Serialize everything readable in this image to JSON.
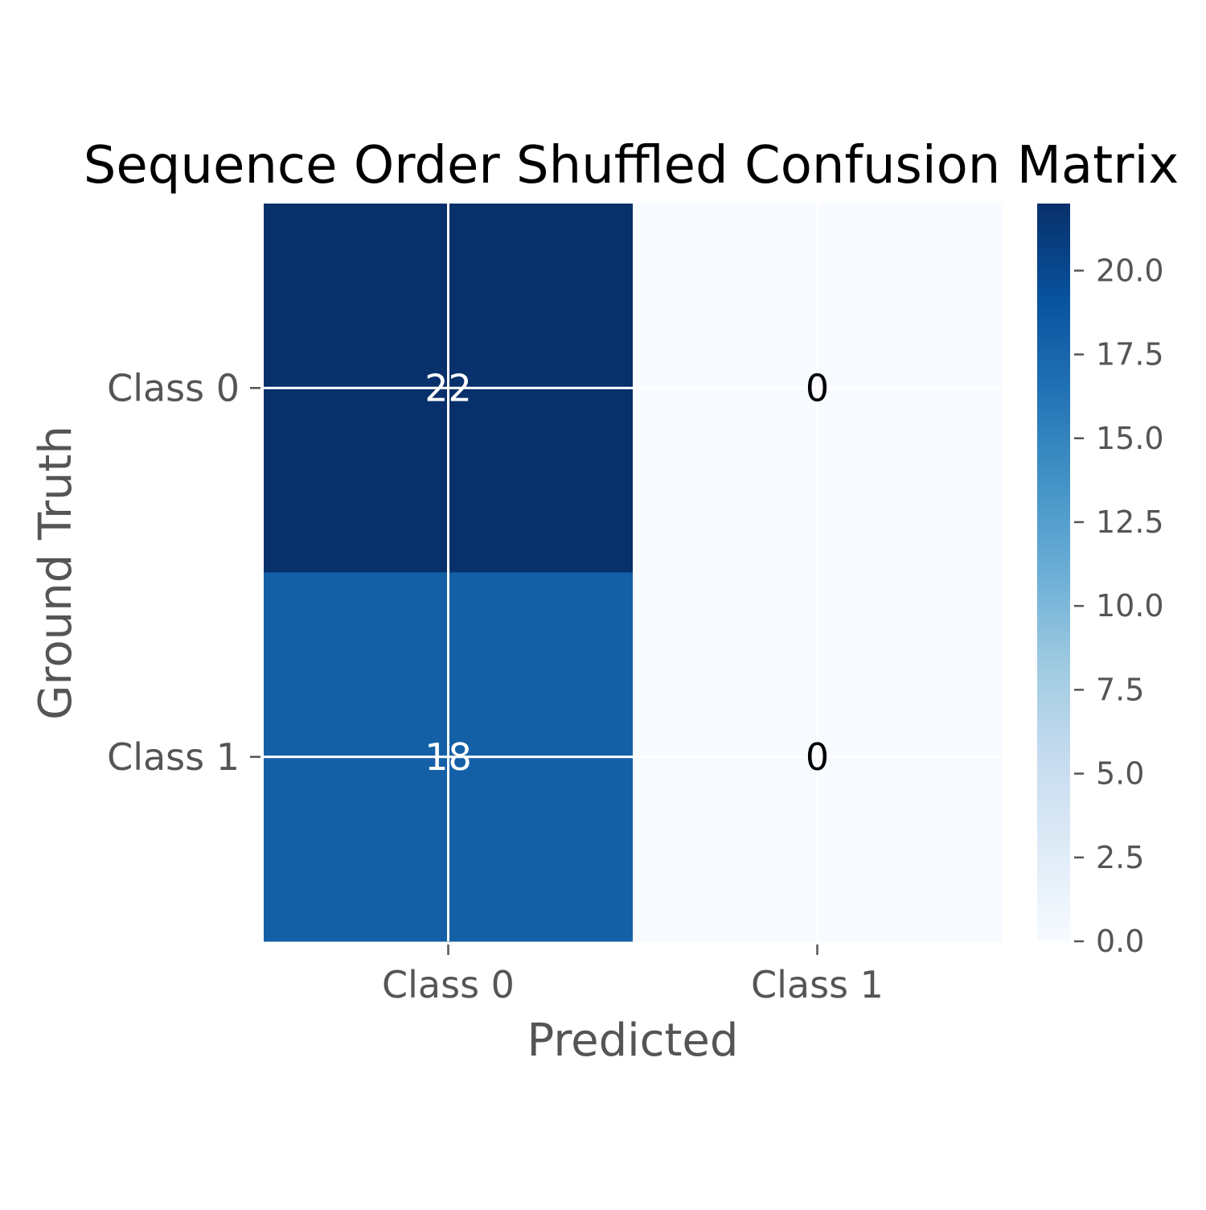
{
  "chart_data": {
    "type": "heatmap",
    "title": "Sequence Order Shuffled Confusion Matrix",
    "xlabel": "Predicted",
    "ylabel": "Ground Truth",
    "x_categories": [
      "Class 0",
      "Class 1"
    ],
    "y_categories": [
      "Class 0",
      "Class 1"
    ],
    "matrix": [
      [
        22,
        0
      ],
      [
        18,
        0
      ]
    ],
    "cell_labels": [
      [
        "22",
        "0"
      ],
      [
        "18",
        "0"
      ]
    ],
    "colormap": "Blues",
    "colorbar": {
      "range": [
        0,
        22
      ],
      "ticks": [
        0,
        2.5,
        5,
        7.5,
        10,
        12.5,
        15,
        17.5,
        20
      ],
      "tick_labels": [
        "0.0",
        "2.5",
        "5.0",
        "7.5",
        "10.0",
        "12.5",
        "15.0",
        "17.5",
        "20.0"
      ]
    },
    "grid": true,
    "colors": {
      "text_dark": "#000000",
      "text_light": "#ffffff",
      "axis_text": "#555555"
    }
  }
}
